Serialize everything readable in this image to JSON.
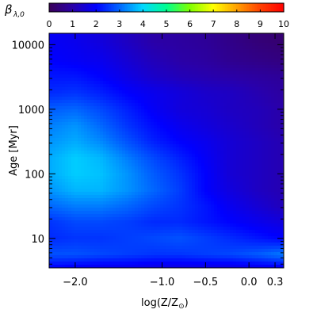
{
  "chart_data": {
    "type": "heatmap",
    "colorbar": {
      "label_main": "β",
      "label_sub": "λ,0",
      "min": 0,
      "max": 10,
      "ticks": [
        "0",
        "1",
        "2",
        "3",
        "4",
        "5",
        "6",
        "7",
        "8",
        "9",
        "10"
      ],
      "colors": [
        "#3a0058",
        "#2a00a8",
        "#0000ff",
        "#0066ff",
        "#00d8ff",
        "#00ff90",
        "#80ff00",
        "#ffff00",
        "#ffa000",
        "#ff4000",
        "#ff0000"
      ]
    },
    "xlabel": "log(Z/Z",
    "xlabel_sub": "⊙",
    "xlabel_close": ")",
    "ylabel": "Age [Myr]",
    "xlim": [
      -2.3,
      0.4
    ],
    "ylim": [
      3.5,
      15000
    ],
    "yscale": "log",
    "x_ticks": [
      {
        "value": -2.0,
        "label": "−2.0"
      },
      {
        "value": -1.0,
        "label": "−1.0"
      },
      {
        "value": -0.5,
        "label": "−0.5"
      },
      {
        "value": 0.0,
        "label": "0.0"
      },
      {
        "value": 0.3,
        "label": "0.3"
      }
    ],
    "y_ticks": [
      {
        "value": 10,
        "label": "10"
      },
      {
        "value": 100,
        "label": "100"
      },
      {
        "value": 1000,
        "label": "1000"
      },
      {
        "value": 10000,
        "label": "10000"
      }
    ],
    "x_grid": [
      -2.3,
      -2.0,
      -1.7,
      -1.4,
      -1.1,
      -0.8,
      -0.5,
      -0.2,
      0.1,
      0.4
    ],
    "log_age_grid": [
      0.55,
      0.75,
      1.0,
      1.25,
      1.5,
      1.75,
      2.0,
      2.25,
      2.5,
      2.75,
      3.0,
      3.25,
      3.5,
      3.75,
      4.05
    ],
    "z_values": [
      [
        2.0,
        1.9,
        1.8,
        1.8,
        1.7,
        1.7,
        1.7,
        1.7,
        1.8,
        1.9
      ],
      [
        2.8,
        2.8,
        2.7,
        2.6,
        2.5,
        2.5,
        2.6,
        2.7,
        2.9,
        3.2
      ],
      [
        2.4,
        2.5,
        2.5,
        2.6,
        2.7,
        2.8,
        2.6,
        2.4,
        2.2,
        2.0
      ],
      [
        2.5,
        2.7,
        2.7,
        2.6,
        2.4,
        2.4,
        2.2,
        2.0,
        1.8,
        1.6
      ],
      [
        3.0,
        3.2,
        3.2,
        3.0,
        2.7,
        2.5,
        2.2,
        1.8,
        1.5,
        1.2
      ],
      [
        3.4,
        3.7,
        3.7,
        3.4,
        3.0,
        2.6,
        2.0,
        1.6,
        1.3,
        1.1
      ],
      [
        3.6,
        3.9,
        3.8,
        3.4,
        2.9,
        2.5,
        2.0,
        1.5,
        1.3,
        1.1
      ],
      [
        3.6,
        3.9,
        3.7,
        3.2,
        2.7,
        2.3,
        1.9,
        1.5,
        1.3,
        1.1
      ],
      [
        3.4,
        3.6,
        3.3,
        2.8,
        2.3,
        2.0,
        1.8,
        1.5,
        1.3,
        1.1
      ],
      [
        3.2,
        3.4,
        3.0,
        2.5,
        2.1,
        1.8,
        1.6,
        1.4,
        1.2,
        1.0
      ],
      [
        2.9,
        3.0,
        2.7,
        2.3,
        1.9,
        1.6,
        1.5,
        1.3,
        1.2,
        1.0
      ],
      [
        2.4,
        2.5,
        2.3,
        2.0,
        1.8,
        1.6,
        1.4,
        1.3,
        1.1,
        0.9
      ],
      [
        2.2,
        2.2,
        2.0,
        1.7,
        1.4,
        1.2,
        1.1,
        1.0,
        0.9,
        0.8
      ],
      [
        2.0,
        1.9,
        1.8,
        1.5,
        1.2,
        1.0,
        0.9,
        0.7,
        0.6,
        0.5
      ],
      [
        1.9,
        1.8,
        1.6,
        1.3,
        1.0,
        0.9,
        0.8,
        0.6,
        0.4,
        0.3
      ]
    ]
  }
}
